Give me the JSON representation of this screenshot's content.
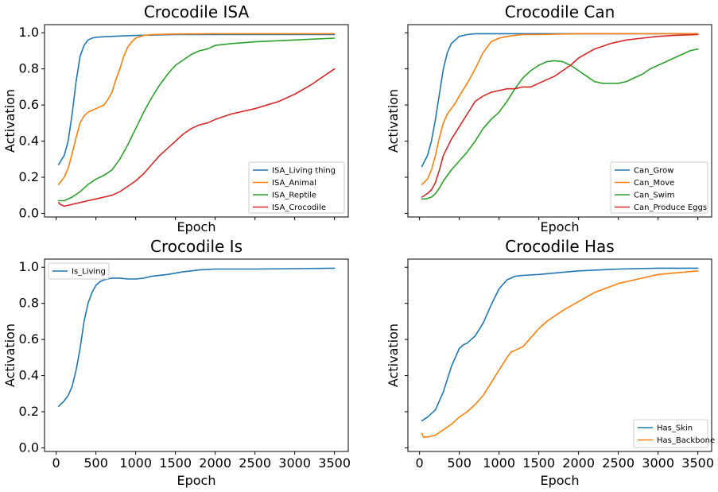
{
  "chart_data": [
    {
      "type": "line",
      "title": "Crocodile ISA",
      "xlabel": "Epoch",
      "ylabel": "Activation",
      "xlim": [
        0,
        3500
      ],
      "ylim": [
        0,
        1.0
      ],
      "show_x_ticklabels": false,
      "show_y_ticklabels": true,
      "legend_position": "lower right",
      "series": [
        {
          "name": "ISA_Living thing",
          "color": "#1f77b4",
          "x": [
            30,
            100,
            150,
            200,
            250,
            300,
            350,
            400,
            450,
            500,
            600,
            700,
            800,
            1000,
            1500,
            2000,
            2500,
            3000,
            3500
          ],
          "y": [
            0.27,
            0.32,
            0.4,
            0.55,
            0.73,
            0.87,
            0.93,
            0.96,
            0.97,
            0.975,
            0.978,
            0.98,
            0.982,
            0.985,
            0.99,
            0.99,
            0.99,
            0.99,
            0.99
          ]
        },
        {
          "name": "ISA_Animal",
          "color": "#ff7f0e",
          "x": [
            30,
            100,
            150,
            200,
            250,
            300,
            350,
            400,
            450,
            500,
            550,
            600,
            650,
            700,
            750,
            800,
            850,
            900,
            950,
            1000,
            1100,
            1200,
            1500,
            2000,
            3500
          ],
          "y": [
            0.16,
            0.2,
            0.25,
            0.33,
            0.42,
            0.5,
            0.54,
            0.56,
            0.57,
            0.58,
            0.59,
            0.6,
            0.63,
            0.67,
            0.74,
            0.8,
            0.87,
            0.92,
            0.95,
            0.97,
            0.985,
            0.99,
            0.993,
            0.995,
            0.995
          ]
        },
        {
          "name": "ISA_Reptile",
          "color": "#2ca02c",
          "x": [
            30,
            100,
            200,
            300,
            400,
            500,
            600,
            700,
            800,
            900,
            1000,
            1100,
            1200,
            1300,
            1400,
            1500,
            1600,
            1700,
            1800,
            1900,
            2000,
            2200,
            2500,
            3000,
            3500
          ],
          "y": [
            0.07,
            0.07,
            0.09,
            0.12,
            0.16,
            0.19,
            0.21,
            0.24,
            0.3,
            0.38,
            0.47,
            0.56,
            0.64,
            0.71,
            0.77,
            0.82,
            0.85,
            0.88,
            0.9,
            0.91,
            0.93,
            0.94,
            0.95,
            0.96,
            0.97
          ]
        },
        {
          "name": "ISA_Crocodile",
          "color": "#d62728",
          "x": [
            30,
            50,
            100,
            200,
            300,
            400,
            500,
            600,
            700,
            800,
            900,
            1000,
            1100,
            1200,
            1300,
            1400,
            1500,
            1600,
            1700,
            1800,
            1900,
            2000,
            2200,
            2500,
            2800,
            3000,
            3200,
            3500
          ],
          "y": [
            0.06,
            0.05,
            0.04,
            0.05,
            0.06,
            0.07,
            0.08,
            0.09,
            0.1,
            0.12,
            0.15,
            0.18,
            0.22,
            0.27,
            0.32,
            0.36,
            0.4,
            0.44,
            0.47,
            0.49,
            0.5,
            0.52,
            0.55,
            0.58,
            0.62,
            0.66,
            0.71,
            0.8
          ]
        }
      ]
    },
    {
      "type": "line",
      "title": "Crocodile Can",
      "xlabel": "Epoch",
      "ylabel": "Activation",
      "xlim": [
        0,
        3500
      ],
      "ylim": [
        0,
        1.0
      ],
      "show_x_ticklabels": false,
      "show_y_ticklabels": false,
      "legend_position": "lower right",
      "series": [
        {
          "name": "Can_Grow",
          "color": "#1f77b4",
          "x": [
            30,
            100,
            150,
            200,
            250,
            300,
            350,
            400,
            450,
            500,
            600,
            700,
            800,
            1000,
            1500,
            2000,
            2500,
            3000,
            3500
          ],
          "y": [
            0.26,
            0.32,
            0.4,
            0.52,
            0.66,
            0.8,
            0.89,
            0.94,
            0.96,
            0.98,
            0.99,
            0.995,
            0.995,
            0.995,
            0.995,
            0.995,
            0.995,
            0.995,
            0.995
          ]
        },
        {
          "name": "Can_Move",
          "color": "#ff7f0e",
          "x": [
            30,
            100,
            150,
            200,
            250,
            300,
            350,
            400,
            450,
            500,
            600,
            700,
            800,
            900,
            1000,
            1100,
            1200,
            1300,
            1500,
            2000,
            3500
          ],
          "y": [
            0.16,
            0.19,
            0.24,
            0.32,
            0.42,
            0.5,
            0.55,
            0.58,
            0.61,
            0.65,
            0.72,
            0.8,
            0.89,
            0.95,
            0.97,
            0.98,
            0.985,
            0.99,
            0.99,
            0.995,
            0.995
          ]
        },
        {
          "name": "Can_Swim",
          "color": "#2ca02c",
          "x": [
            30,
            80,
            150,
            200,
            250,
            300,
            400,
            500,
            600,
            700,
            800,
            900,
            1000,
            1100,
            1200,
            1300,
            1400,
            1500,
            1600,
            1700,
            1800,
            1900,
            2000,
            2100,
            2200,
            2300,
            2400,
            2500,
            2600,
            2700,
            2800,
            2900,
            3000,
            3100,
            3200,
            3300,
            3400,
            3500
          ],
          "y": [
            0.08,
            0.08,
            0.09,
            0.11,
            0.14,
            0.18,
            0.24,
            0.29,
            0.34,
            0.4,
            0.47,
            0.52,
            0.56,
            0.62,
            0.69,
            0.75,
            0.79,
            0.82,
            0.84,
            0.845,
            0.84,
            0.82,
            0.79,
            0.76,
            0.73,
            0.72,
            0.72,
            0.72,
            0.73,
            0.75,
            0.77,
            0.8,
            0.82,
            0.84,
            0.86,
            0.88,
            0.9,
            0.91
          ]
        },
        {
          "name": "Can_Produce Eggs",
          "color": "#d62728",
          "x": [
            30,
            100,
            150,
            200,
            250,
            300,
            400,
            500,
            600,
            700,
            800,
            900,
            1000,
            1100,
            1200,
            1300,
            1400,
            1500,
            1600,
            1700,
            1800,
            1900,
            2000,
            2200,
            2400,
            2600,
            2800,
            3000,
            3200,
            3500
          ],
          "y": [
            0.09,
            0.11,
            0.13,
            0.17,
            0.24,
            0.32,
            0.41,
            0.48,
            0.55,
            0.62,
            0.65,
            0.67,
            0.68,
            0.69,
            0.69,
            0.7,
            0.7,
            0.72,
            0.74,
            0.76,
            0.79,
            0.82,
            0.86,
            0.91,
            0.94,
            0.96,
            0.97,
            0.98,
            0.985,
            0.99
          ]
        }
      ]
    },
    {
      "type": "line",
      "title": "Crocodile Is",
      "xlabel": "Epoch",
      "ylabel": "Activation",
      "xlim": [
        0,
        3500
      ],
      "ylim": [
        0,
        1.0
      ],
      "show_x_ticklabels": true,
      "show_y_ticklabels": true,
      "legend_position": "upper left",
      "series": [
        {
          "name": "Is_Living",
          "color": "#1f77b4",
          "x": [
            30,
            100,
            150,
            200,
            250,
            300,
            350,
            400,
            450,
            500,
            550,
            600,
            650,
            700,
            800,
            900,
            1000,
            1100,
            1200,
            1400,
            1600,
            1800,
            2000,
            2500,
            3000,
            3500
          ],
          "y": [
            0.23,
            0.26,
            0.29,
            0.34,
            0.43,
            0.55,
            0.7,
            0.8,
            0.86,
            0.9,
            0.92,
            0.93,
            0.935,
            0.94,
            0.94,
            0.935,
            0.935,
            0.94,
            0.95,
            0.96,
            0.975,
            0.985,
            0.99,
            0.99,
            0.992,
            0.995
          ]
        }
      ]
    },
    {
      "type": "line",
      "title": "Crocodile Has",
      "xlabel": "Epoch",
      "ylabel": "Activation",
      "xlim": [
        0,
        3500
      ],
      "ylim": [
        0,
        1.0
      ],
      "show_x_ticklabels": true,
      "show_y_ticklabels": false,
      "legend_position": "lower right",
      "series": [
        {
          "name": "Has_Skin",
          "color": "#1f77b4",
          "x": [
            30,
            100,
            200,
            300,
            400,
            500,
            550,
            600,
            700,
            800,
            900,
            1000,
            1100,
            1200,
            1300,
            1500,
            2000,
            2500,
            3000,
            3500
          ],
          "y": [
            0.15,
            0.17,
            0.21,
            0.31,
            0.45,
            0.55,
            0.57,
            0.58,
            0.62,
            0.69,
            0.79,
            0.88,
            0.93,
            0.95,
            0.955,
            0.96,
            0.98,
            0.99,
            0.995,
            0.995
          ]
        },
        {
          "name": "Has_Backbone",
          "color": "#ff7f0e",
          "x": [
            30,
            50,
            100,
            200,
            300,
            400,
            500,
            600,
            700,
            800,
            900,
            1000,
            1100,
            1150,
            1200,
            1300,
            1400,
            1500,
            1600,
            1800,
            2000,
            2200,
            2500,
            2800,
            3000,
            3500
          ],
          "y": [
            0.08,
            0.06,
            0.06,
            0.07,
            0.1,
            0.13,
            0.17,
            0.2,
            0.24,
            0.29,
            0.36,
            0.43,
            0.5,
            0.53,
            0.54,
            0.56,
            0.61,
            0.66,
            0.7,
            0.76,
            0.81,
            0.86,
            0.91,
            0.94,
            0.96,
            0.98
          ]
        }
      ]
    }
  ]
}
